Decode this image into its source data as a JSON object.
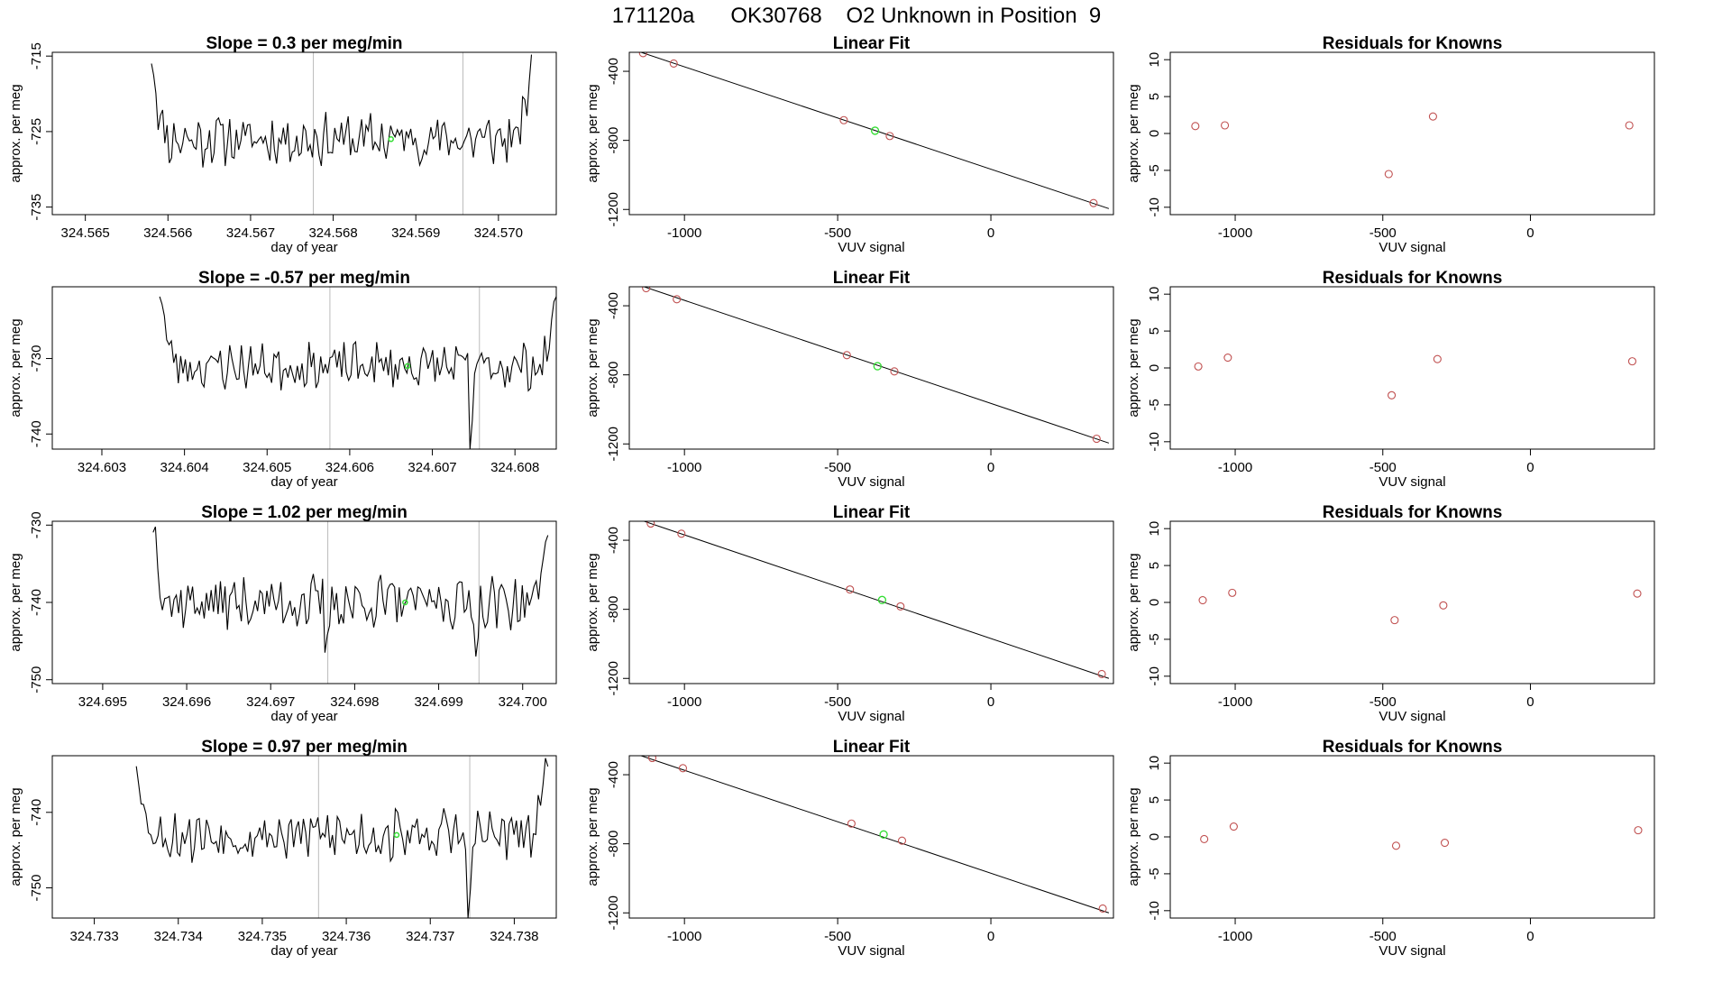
{
  "figure": {
    "title": "171120a      OK30768    O2 Unknown in Position  9"
  },
  "colors": {
    "series": "#000000",
    "points": "#c05050",
    "highlight": "#33dd33",
    "vlines": "#bbbbbb"
  },
  "chart_data": [
    {
      "type": "line",
      "row": 0,
      "col": 0,
      "title": "Slope =  0.3  per meg/min",
      "xlabel": "day of year",
      "ylabel": "approx. per meg",
      "xlim": [
        324.5646,
        324.5707
      ],
      "ylim": [
        -736,
        -714.5
      ],
      "xticks": [
        324.565,
        324.566,
        324.567,
        324.568,
        324.569,
        324.57
      ],
      "xtick_labels": [
        "324.565",
        "324.566",
        "324.567",
        "324.568",
        "324.569",
        "324.570"
      ],
      "yticks": [
        -715,
        -725,
        -735
      ],
      "ytick_labels": [
        "-715",
        "-725",
        "-735"
      ],
      "vlines": [
        324.56776,
        324.56957
      ],
      "series": [
        {
          "x_start": 324.5658,
          "x_end": 324.5704,
          "start_value": -714.5,
          "end_value": -714.5,
          "mean": -726,
          "amplitude": 1.8,
          "n": 170,
          "seed": 11
        }
      ],
      "highlight": {
        "x": 324.5687,
        "y": -726
      }
    },
    {
      "type": "scatter",
      "row": 0,
      "col": 1,
      "title": "Linear Fit",
      "xlabel": "VUV signal",
      "ylabel": "approx. per meg",
      "xlim": [
        -1180,
        400
      ],
      "ylim": [
        -1230,
        -290
      ],
      "xticks": [
        -1000,
        -500,
        0
      ],
      "xtick_labels": [
        "-1000",
        "-500",
        "0"
      ],
      "yticks": [
        -400,
        -800,
        -1200
      ],
      "ytick_labels": [
        "-400",
        "-800",
        "-1200"
      ],
      "fit_line": {
        "x": [
          -1150,
          385
        ],
        "y": [
          -285,
          -1195
        ]
      },
      "points": [
        {
          "x": -1135,
          "y": -295
        },
        {
          "x": -1035,
          "y": -355
        },
        {
          "x": -480,
          "y": -683
        },
        {
          "x": -330,
          "y": -775
        },
        {
          "x": 335,
          "y": -1163
        }
      ],
      "highlight": {
        "x": -378,
        "y": -744
      }
    },
    {
      "type": "scatter",
      "row": 0,
      "col": 2,
      "title": "Residuals for Knowns",
      "xlabel": "VUV signal",
      "ylabel": "approx. per meg",
      "xlim": [
        -1220,
        420
      ],
      "ylim": [
        -11,
        11
      ],
      "xticks": [
        -1000,
        -500,
        0
      ],
      "xtick_labels": [
        "-1000",
        "-500",
        "0"
      ],
      "yticks": [
        10,
        5,
        0,
        -5,
        -10
      ],
      "ytick_labels": [
        "10",
        "5",
        "0",
        "-5",
        "-10"
      ],
      "points": [
        {
          "x": -1135,
          "y": 1.0
        },
        {
          "x": -1035,
          "y": 1.1
        },
        {
          "x": -480,
          "y": -5.5
        },
        {
          "x": -330,
          "y": 2.3
        },
        {
          "x": 335,
          "y": 1.1
        }
      ]
    },
    {
      "type": "line",
      "row": 1,
      "col": 0,
      "title": "Slope =  -0.57  per meg/min",
      "xlabel": "day of year",
      "ylabel": "approx. per meg",
      "xlim": [
        324.6024,
        324.6085
      ],
      "ylim": [
        -742,
        -720.5
      ],
      "xticks": [
        324.603,
        324.604,
        324.605,
        324.606,
        324.607,
        324.608
      ],
      "xtick_labels": [
        "324.603",
        "324.604",
        "324.605",
        "324.606",
        "324.607",
        "324.608"
      ],
      "yticks": [
        -730,
        -740
      ],
      "ytick_labels": [
        "-730",
        "-740"
      ],
      "vlines": [
        324.60576,
        324.60757
      ],
      "series": [
        {
          "x_start": 324.6037,
          "x_end": 324.6085,
          "start_value": -720.5,
          "end_value": -720.5,
          "mean": -731,
          "amplitude": 1.6,
          "n": 170,
          "seed": 23,
          "dips": [
            {
              "x": 324.60745,
              "y": -742
            }
          ]
        }
      ],
      "highlight": {
        "x": 324.6067,
        "y": -731
      }
    },
    {
      "type": "scatter",
      "row": 1,
      "col": 1,
      "title": "Linear Fit",
      "xlabel": "VUV signal",
      "ylabel": "approx. per meg",
      "xlim": [
        -1180,
        400
      ],
      "ylim": [
        -1230,
        -290
      ],
      "xticks": [
        -1000,
        -500,
        0
      ],
      "xtick_labels": [
        "-1000",
        "-500",
        "0"
      ],
      "yticks": [
        -400,
        -800,
        -1200
      ],
      "ytick_labels": [
        "-400",
        "-800",
        "-1200"
      ],
      "fit_line": {
        "x": [
          -1140,
          385
        ],
        "y": [
          -285,
          -1195
        ]
      },
      "points": [
        {
          "x": -1125,
          "y": -298
        },
        {
          "x": -1025,
          "y": -362
        },
        {
          "x": -470,
          "y": -686
        },
        {
          "x": -315,
          "y": -780
        },
        {
          "x": 345,
          "y": -1170
        }
      ],
      "highlight": {
        "x": -370,
        "y": -750
      }
    },
    {
      "type": "scatter",
      "row": 1,
      "col": 2,
      "title": "Residuals for Knowns",
      "xlabel": "VUV signal",
      "ylabel": "approx. per meg",
      "xlim": [
        -1220,
        420
      ],
      "ylim": [
        -11,
        11
      ],
      "xticks": [
        -1000,
        -500,
        0
      ],
      "xtick_labels": [
        "-1000",
        "-500",
        "0"
      ],
      "yticks": [
        10,
        5,
        0,
        -5,
        -10
      ],
      "ytick_labels": [
        "10",
        "5",
        "0",
        "-5",
        "-10"
      ],
      "points": [
        {
          "x": -1125,
          "y": 0.2
        },
        {
          "x": -1025,
          "y": 1.4
        },
        {
          "x": -470,
          "y": -3.7
        },
        {
          "x": -315,
          "y": 1.2
        },
        {
          "x": 345,
          "y": 0.9
        }
      ]
    },
    {
      "type": "line",
      "row": 2,
      "col": 0,
      "title": "Slope =  1.02  per meg/min",
      "xlabel": "day of year",
      "ylabel": "approx. per meg",
      "xlim": [
        324.6944,
        324.7004
      ],
      "ylim": [
        -750.5,
        -729.5
      ],
      "xticks": [
        324.695,
        324.696,
        324.697,
        324.698,
        324.699,
        324.7
      ],
      "xtick_labels": [
        "324.695",
        "324.696",
        "324.697",
        "324.698",
        "324.699",
        "324.700"
      ],
      "yticks": [
        -730,
        -740,
        -750
      ],
      "ytick_labels": [
        "-730",
        "-740",
        "-750"
      ],
      "vlines": [
        324.69768,
        324.69948
      ],
      "series": [
        {
          "x_start": 324.6956,
          "x_end": 324.7003,
          "start_value": -729.5,
          "end_value": -729.5,
          "mean": -740,
          "amplitude": 1.8,
          "n": 170,
          "seed": 37,
          "dips": [
            {
              "x": 324.69765,
              "y": -746.5
            },
            {
              "x": 324.69945,
              "y": -747
            }
          ]
        }
      ],
      "highlight": {
        "x": 324.6986,
        "y": -740
      }
    },
    {
      "type": "scatter",
      "row": 2,
      "col": 1,
      "title": "Linear Fit",
      "xlabel": "VUV signal",
      "ylabel": "approx. per meg",
      "xlim": [
        -1180,
        400
      ],
      "ylim": [
        -1230,
        -290
      ],
      "xticks": [
        -1000,
        -500,
        0
      ],
      "xtick_labels": [
        "-1000",
        "-500",
        "0"
      ],
      "yticks": [
        -400,
        -800,
        -1200
      ],
      "ytick_labels": [
        "-400",
        "-800",
        "-1200"
      ],
      "fit_line": {
        "x": [
          -1140,
          385
        ],
        "y": [
          -285,
          -1200
        ]
      },
      "points": [
        {
          "x": -1110,
          "y": -303
        },
        {
          "x": -1010,
          "y": -362
        },
        {
          "x": -460,
          "y": -685
        },
        {
          "x": -295,
          "y": -783
        },
        {
          "x": 362,
          "y": -1175
        }
      ],
      "highlight": {
        "x": -355,
        "y": -746
      }
    },
    {
      "type": "scatter",
      "row": 2,
      "col": 2,
      "title": "Residuals for Knowns",
      "xlabel": "VUV signal",
      "ylabel": "approx. per meg",
      "xlim": [
        -1220,
        420
      ],
      "ylim": [
        -11,
        11
      ],
      "xticks": [
        -1000,
        -500,
        0
      ],
      "xtick_labels": [
        "-1000",
        "-500",
        "0"
      ],
      "yticks": [
        10,
        5,
        0,
        -5,
        -10
      ],
      "ytick_labels": [
        "10",
        "5",
        "0",
        "-5",
        "-10"
      ],
      "points": [
        {
          "x": -1110,
          "y": 0.3
        },
        {
          "x": -1010,
          "y": 1.3
        },
        {
          "x": -460,
          "y": -2.4
        },
        {
          "x": -295,
          "y": -0.4
        },
        {
          "x": 362,
          "y": 1.2
        }
      ]
    },
    {
      "type": "line",
      "row": 3,
      "col": 0,
      "title": "Slope =  0.97  per meg/min",
      "xlabel": "day of year",
      "ylabel": "approx. per meg",
      "xlim": [
        324.7325,
        324.7385
      ],
      "ylim": [
        -754,
        -732.5
      ],
      "xticks": [
        324.733,
        324.734,
        324.735,
        324.736,
        324.737,
        324.738
      ],
      "xtick_labels": [
        "324.733",
        "324.734",
        "324.735",
        "324.736",
        "324.737",
        "324.738"
      ],
      "yticks": [
        -740,
        -750
      ],
      "ytick_labels": [
        "-740",
        "-750"
      ],
      "vlines": [
        324.73567,
        324.73747
      ],
      "series": [
        {
          "x_start": 324.7335,
          "x_end": 324.7384,
          "start_value": -732.5,
          "end_value": -732.5,
          "mean": -743,
          "amplitude": 1.8,
          "n": 170,
          "seed": 53,
          "dips": [
            {
              "x": 324.73745,
              "y": -754
            }
          ]
        }
      ],
      "highlight": {
        "x": 324.7366,
        "y": -743
      }
    },
    {
      "type": "scatter",
      "row": 3,
      "col": 1,
      "title": "Linear Fit",
      "xlabel": "VUV signal",
      "ylabel": "approx. per meg",
      "xlim": [
        -1180,
        400
      ],
      "ylim": [
        -1230,
        -290
      ],
      "xticks": [
        -1000,
        -500,
        0
      ],
      "xtick_labels": [
        "-1000",
        "-500",
        "0"
      ],
      "yticks": [
        -400,
        -800,
        -1200
      ],
      "ytick_labels": [
        "-400",
        "-800",
        "-1200"
      ],
      "fit_line": {
        "x": [
          -1150,
          385
        ],
        "y": [
          -285,
          -1200
        ]
      },
      "points": [
        {
          "x": -1105,
          "y": -303
        },
        {
          "x": -1005,
          "y": -362
        },
        {
          "x": -455,
          "y": -683
        },
        {
          "x": -290,
          "y": -782
        },
        {
          "x": 365,
          "y": -1175
        }
      ],
      "highlight": {
        "x": -350,
        "y": -746
      }
    },
    {
      "type": "scatter",
      "row": 3,
      "col": 2,
      "title": "Residuals for Knowns",
      "xlabel": "VUV signal",
      "ylabel": "approx. per meg",
      "xlim": [
        -1220,
        420
      ],
      "ylim": [
        -11,
        11
      ],
      "xticks": [
        -1000,
        -500,
        0
      ],
      "xtick_labels": [
        "-1000",
        "-500",
        "0"
      ],
      "yticks": [
        10,
        5,
        0,
        -5,
        -10
      ],
      "ytick_labels": [
        "10",
        "5",
        "0",
        "-5",
        "-10"
      ],
      "points": [
        {
          "x": -1105,
          "y": -0.3
        },
        {
          "x": -1005,
          "y": 1.4
        },
        {
          "x": -455,
          "y": -1.2
        },
        {
          "x": -290,
          "y": -0.8
        },
        {
          "x": 365,
          "y": 0.9
        }
      ]
    }
  ]
}
